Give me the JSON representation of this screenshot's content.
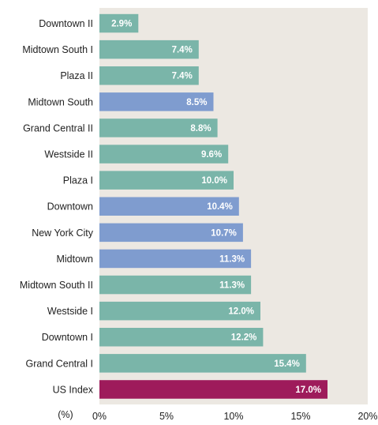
{
  "chart_data": {
    "type": "bar",
    "orientation": "horizontal",
    "categories": [
      "Downtown II",
      "Midtown South I",
      "Plaza II",
      "Midtown South",
      "Grand Central II",
      "Westside II",
      "Plaza I",
      "Downtown",
      "New York City",
      "Midtown",
      "Midtown South II",
      "Westside I",
      "Downtown I",
      "Grand Central I",
      "US Index"
    ],
    "values": [
      2.9,
      7.4,
      7.4,
      8.5,
      8.8,
      9.6,
      10.0,
      10.4,
      10.7,
      11.3,
      11.3,
      12.0,
      12.2,
      15.4,
      17.0
    ],
    "value_labels": [
      "2.9%",
      "7.4%",
      "7.4%",
      "8.5%",
      "8.8%",
      "9.6%",
      "10.0%",
      "10.4%",
      "10.7%",
      "11.3%",
      "11.3%",
      "12.0%",
      "12.2%",
      "15.4%",
      "17.0%"
    ],
    "groups": [
      "submarket",
      "submarket",
      "submarket",
      "market",
      "submarket",
      "submarket",
      "submarket",
      "market",
      "market",
      "market",
      "submarket",
      "submarket",
      "submarket",
      "submarket",
      "index"
    ],
    "colors": {
      "submarket": "#7ab5a9",
      "market": "#7f9ccf",
      "index": "#9e1b5b",
      "plot_background": "#ece8e2"
    },
    "xlabel": "(%)",
    "xlim": [
      0,
      20
    ],
    "xticks": [
      0,
      5,
      10,
      15,
      20
    ],
    "xtick_labels": [
      "0%",
      "5%",
      "10%",
      "15%",
      "20%"
    ],
    "title": "",
    "grid": false,
    "legend": "none"
  }
}
